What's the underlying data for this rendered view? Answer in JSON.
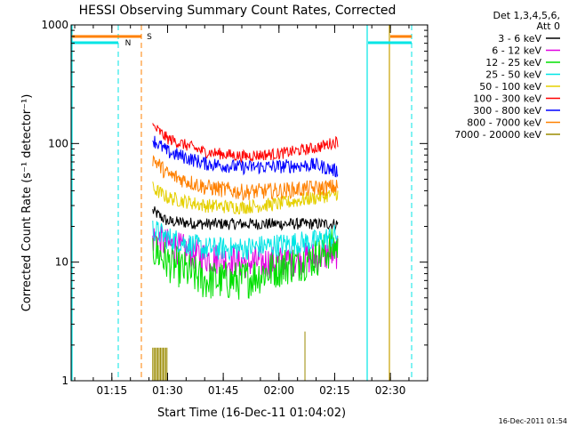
{
  "chart_data": {
    "type": "line",
    "title": "HESSI Observing Summary Count Rates, Corrected",
    "xlabel": "Start Time (16-Dec-11 01:04:02)",
    "ylabel": "Corrected Count Rate (s⁻¹ detector⁻¹)",
    "yscale": "log",
    "ylim": [
      1,
      1000
    ],
    "xlim_minutes_after_start": [
      0,
      96
    ],
    "x_ticks": [
      "01:15",
      "01:30",
      "01:45",
      "02:00",
      "02:15",
      "02:30"
    ],
    "y_ticks": [
      "1",
      "10",
      "100",
      "1000"
    ],
    "legend_header": [
      "Det 1,3,4,5,6,",
      "Att 0"
    ],
    "legend_position": "right",
    "grid": false,
    "footer_timestamp": "16-Dec-2011 01:54",
    "annotations": [
      {
        "label": "N",
        "color": "#00e5e5"
      },
      {
        "label": "S",
        "color": "#ff8000"
      }
    ],
    "series": [
      {
        "name": "3 - 6 keV",
        "color": "#000000",
        "x": [
          "01:26",
          "01:30",
          "01:40",
          "01:50",
          "02:00",
          "02:10",
          "02:16"
        ],
        "y": [
          27,
          22,
          21,
          21,
          21,
          21,
          21
        ]
      },
      {
        "name": "6 - 12 keV",
        "color": "#e000e0",
        "x": [
          "01:26",
          "01:30",
          "01:40",
          "01:50",
          "02:00",
          "02:10",
          "02:16"
        ],
        "y": [
          16,
          14,
          11,
          10,
          10,
          11,
          12
        ]
      },
      {
        "name": "12 - 25 keV",
        "color": "#00e000",
        "x": [
          "01:26",
          "01:30",
          "01:40",
          "01:50",
          "02:00",
          "02:10",
          "02:16"
        ],
        "y": [
          13,
          10,
          7,
          7,
          9,
          11,
          14
        ]
      },
      {
        "name": "25 - 50 keV",
        "color": "#00e5e5",
        "x": [
          "01:26",
          "01:30",
          "01:40",
          "01:50",
          "02:00",
          "02:10",
          "02:16"
        ],
        "y": [
          19,
          16,
          13,
          13,
          14,
          15,
          17
        ]
      },
      {
        "name": "50 - 100 keV",
        "color": "#e5d000",
        "x": [
          "01:26",
          "01:30",
          "01:40",
          "01:50",
          "02:00",
          "02:10",
          "02:16"
        ],
        "y": [
          42,
          35,
          30,
          29,
          31,
          35,
          38
        ]
      },
      {
        "name": "100 - 300 keV",
        "color": "#ff0000",
        "x": [
          "01:26",
          "01:30",
          "01:40",
          "01:50",
          "02:00",
          "02:10",
          "02:16"
        ],
        "y": [
          140,
          110,
          85,
          78,
          82,
          92,
          105
        ]
      },
      {
        "name": "300 - 800 keV",
        "color": "#0000ff",
        "x": [
          "01:26",
          "01:30",
          "01:40",
          "01:50",
          "02:00",
          "02:10",
          "02:16"
        ],
        "y": [
          108,
          85,
          68,
          63,
          64,
          66,
          58
        ]
      },
      {
        "name": "800 - 7000 keV",
        "color": "#ff8000",
        "x": [
          "01:26",
          "01:30",
          "01:40",
          "01:50",
          "02:00",
          "02:10",
          "02:16"
        ],
        "y": [
          75,
          55,
          43,
          39,
          40,
          42,
          43
        ]
      },
      {
        "name": "7000 - 20000 keV",
        "color": "#9a8a00",
        "x": [
          "01:26",
          "01:30",
          "02:07"
        ],
        "y": [
          1.9,
          1.9,
          1.9
        ]
      }
    ]
  }
}
